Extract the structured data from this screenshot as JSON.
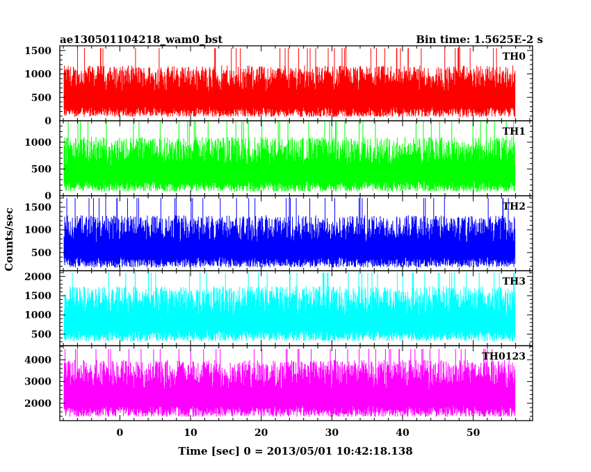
{
  "title_left": "ae130501104218_wam0_bst",
  "title_right": "Bin time: 1.5625E-2 s",
  "xlabel": "Time [sec] 0 = 2013/05/01 10:42:18.138",
  "ylabel": "Counts/sec",
  "chart_data": {
    "type": "line",
    "xlim": [
      -8.5,
      58.4
    ],
    "x_range": [
      -7.9,
      55.9
    ],
    "x_ticks": [
      0,
      10,
      20,
      30,
      40,
      50
    ],
    "bin_time_s": 0.015625,
    "panels": [
      {
        "name": "TH0",
        "color": "#ff0000",
        "ylim": [
          0,
          1600
        ],
        "y_ticks": [
          0,
          500,
          1000,
          1500
        ],
        "base": 300,
        "spread": 880,
        "peak": 1550
      },
      {
        "name": "TH1",
        "color": "#00ff00",
        "ylim": [
          0,
          1400
        ],
        "y_ticks": [
          0,
          500,
          1000
        ],
        "base": 280,
        "spread": 820,
        "peak": 1400
      },
      {
        "name": "TH2",
        "color": "#0000ff",
        "ylim": [
          100,
          1750
        ],
        "y_ticks": [
          500,
          1000,
          1500
        ],
        "base": 400,
        "spread": 920,
        "peak": 1700
      },
      {
        "name": "TH3",
        "color": "#00ffff",
        "ylim": [
          200,
          2150
        ],
        "y_ticks": [
          500,
          1000,
          1500,
          2000
        ],
        "base": 600,
        "spread": 1150,
        "peak": 2100
      },
      {
        "name": "TH0123",
        "color": "#ff00ff",
        "ylim": [
          1200,
          4650
        ],
        "y_ticks": [
          2000,
          3000,
          4000
        ],
        "base": 1900,
        "spread": 2100,
        "peak": 4500
      }
    ]
  }
}
